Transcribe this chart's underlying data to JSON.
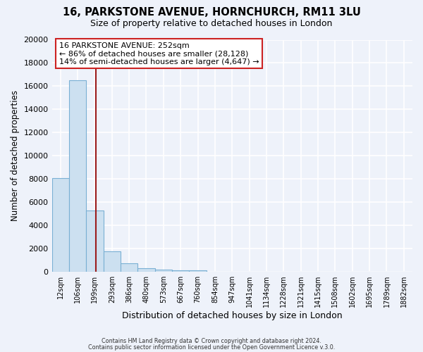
{
  "title": "16, PARKSTONE AVENUE, HORNCHURCH, RM11 3LU",
  "subtitle": "Size of property relative to detached houses in London",
  "xlabel": "Distribution of detached houses by size in London",
  "ylabel": "Number of detached properties",
  "bar_labels": [
    "12sqm",
    "106sqm",
    "199sqm",
    "293sqm",
    "386sqm",
    "480sqm",
    "573sqm",
    "667sqm",
    "760sqm",
    "854sqm",
    "947sqm",
    "1041sqm",
    "1134sqm",
    "1228sqm",
    "1321sqm",
    "1415sqm",
    "1508sqm",
    "1602sqm",
    "1695sqm",
    "1789sqm",
    "1882sqm"
  ],
  "bar_heights": [
    8100,
    16500,
    5300,
    1750,
    750,
    300,
    200,
    150,
    100,
    0,
    0,
    0,
    0,
    0,
    0,
    0,
    0,
    0,
    0,
    0,
    0
  ],
  "bar_color": "#cce0f0",
  "bar_edge_color": "#7ab0d4",
  "vline_color": "#9b1c1c",
  "ylim": [
    0,
    20000
  ],
  "yticks": [
    0,
    2000,
    4000,
    6000,
    8000,
    10000,
    12000,
    14000,
    16000,
    18000,
    20000
  ],
  "annotation_title": "16 PARKSTONE AVENUE: 252sqm",
  "annotation_line1": "← 86% of detached houses are smaller (28,128)",
  "annotation_line2": "14% of semi-detached houses are larger (4,647) →",
  "annotation_box_color": "#ffffff",
  "annotation_box_edge": "#cc2222",
  "footer1": "Contains HM Land Registry data © Crown copyright and database right 2024.",
  "footer2": "Contains public sector information licensed under the Open Government Licence v.3.0.",
  "bg_color": "#eef2fa",
  "plot_bg_color": "#eef2fa",
  "grid_color": "#ffffff"
}
